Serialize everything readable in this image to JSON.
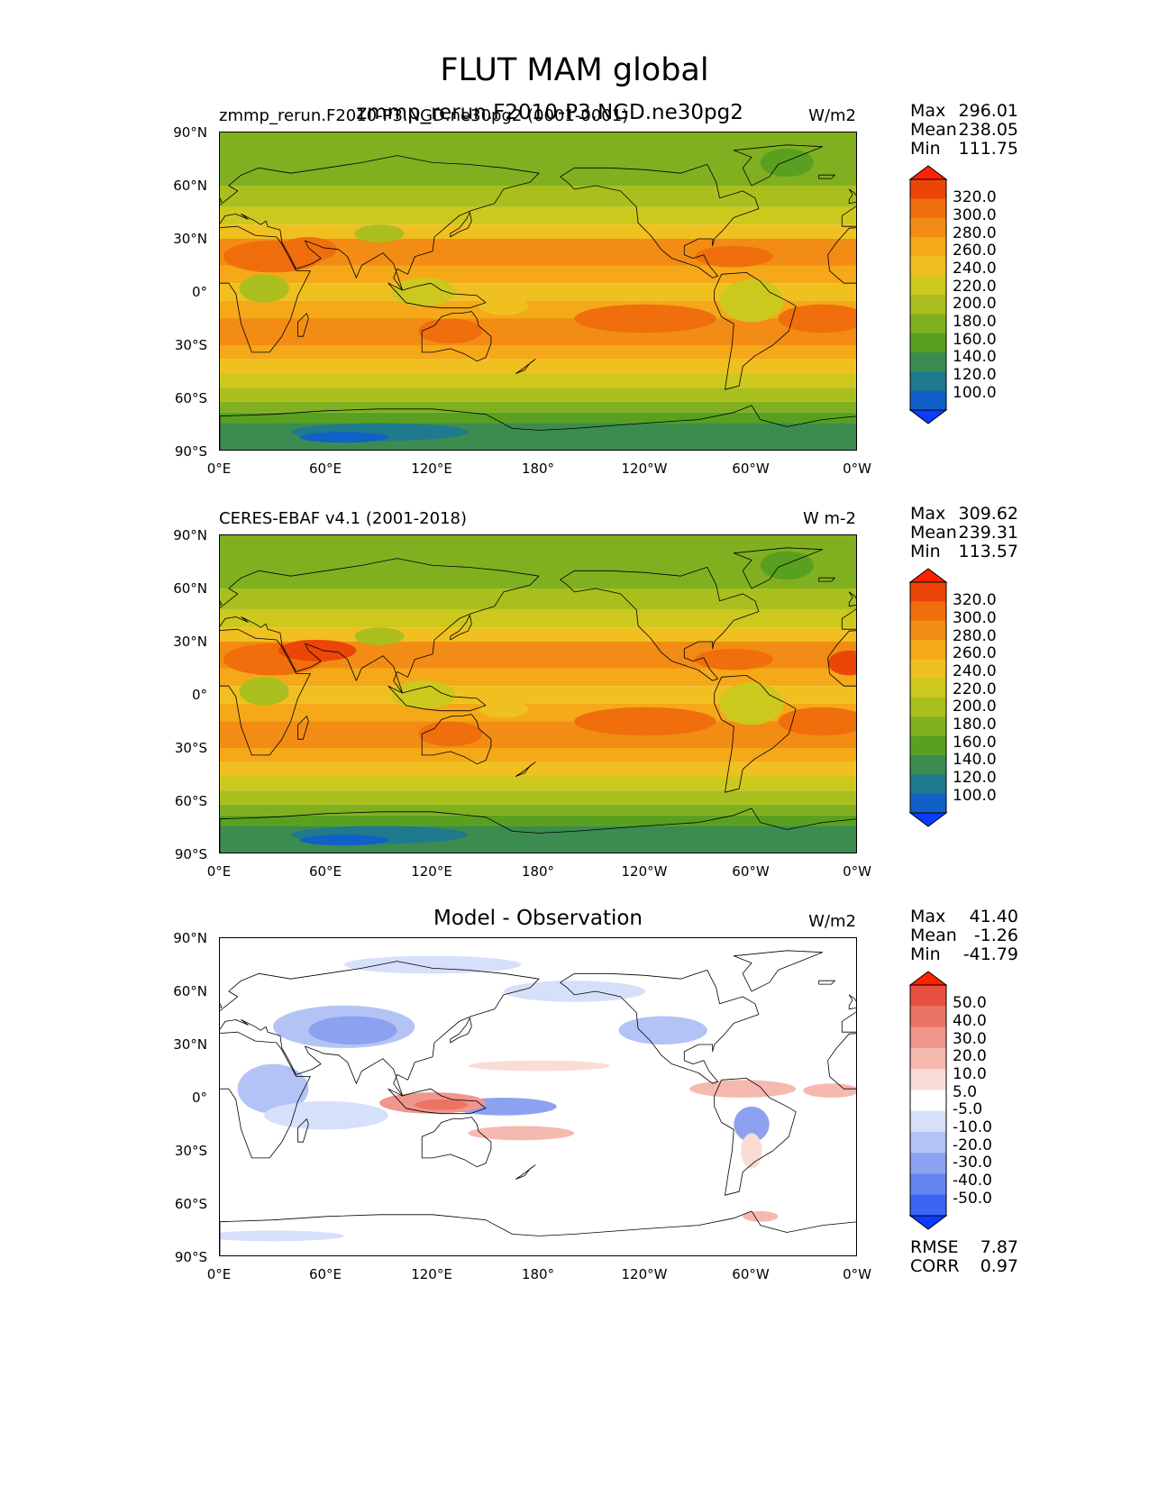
{
  "figure": {
    "title": "FLUT MAM global",
    "overlap_title": "zmmp_rerun.F2010-P3.NGD.ne30pg2"
  },
  "ticks": {
    "lat": [
      "90°N",
      "60°N",
      "30°N",
      "0°",
      "30°S",
      "60°S",
      "90°S"
    ],
    "lon": [
      "0°E",
      "60°E",
      "120°E",
      "180°",
      "120°W",
      "60°W",
      "0°W"
    ]
  },
  "colors": {
    "abs_scale": [
      "#0a3cff",
      "#1060c8",
      "#1e7a8c",
      "#3c8c50",
      "#5aa020",
      "#80b020",
      "#aabf1e",
      "#cdc81e",
      "#f0c020",
      "#f5a818",
      "#f28c14",
      "#f06e0c",
      "#eb4608",
      "#ff2200"
    ],
    "diff_scale": [
      "#0a3cff",
      "#3c64f5",
      "#6482f0",
      "#8ca2f0",
      "#b4c3f5",
      "#d7e0fa",
      "#ffffff",
      "#fadcd7",
      "#f5b9b0",
      "#f0968c",
      "#eb7364",
      "#e65041",
      "#ff2200"
    ]
  },
  "panels": [
    {
      "left_title": "zmmp_rerun.F2010-P3.NGD.ne30pg2 (0001-0001)",
      "center_title": "",
      "units": "W/m2",
      "stats": [
        {
          "label": "Max",
          "value": "296.01"
        },
        {
          "label": "Mean",
          "value": "238.05"
        },
        {
          "label": "Min",
          "value": "111.75"
        }
      ],
      "levels": [
        "320.0",
        "300.0",
        "280.0",
        "260.0",
        "240.0",
        "220.0",
        "200.0",
        "180.0",
        "160.0",
        "140.0",
        "120.0",
        "100.0"
      ],
      "extra_stats": []
    },
    {
      "left_title": "CERES-EBAF v4.1 (2001-2018)",
      "center_title": "",
      "units": "W m-2",
      "stats": [
        {
          "label": "Max",
          "value": "309.62"
        },
        {
          "label": "Mean",
          "value": "239.31"
        },
        {
          "label": "Min",
          "value": "113.57"
        }
      ],
      "levels": [
        "320.0",
        "300.0",
        "280.0",
        "260.0",
        "240.0",
        "220.0",
        "200.0",
        "180.0",
        "160.0",
        "140.0",
        "120.0",
        "100.0"
      ],
      "extra_stats": []
    },
    {
      "left_title": "",
      "center_title": "Model - Observation",
      "units": "W/m2",
      "stats": [
        {
          "label": "Max",
          "value": "41.40"
        },
        {
          "label": "Mean",
          "value": "-1.26"
        },
        {
          "label": "Min",
          "value": "-41.79"
        }
      ],
      "levels": [
        "50.0",
        "40.0",
        "30.0",
        "20.0",
        "10.0",
        "5.0",
        "-5.0",
        "-10.0",
        "-20.0",
        "-30.0",
        "-40.0",
        "-50.0"
      ],
      "extra_stats": [
        {
          "label": "RMSE",
          "value": "7.87"
        },
        {
          "label": "CORR",
          "value": "0.97"
        }
      ]
    }
  ],
  "chart_data": [
    {
      "type": "heatmap",
      "title": "zmmp_rerun.F2010-P3.NGD.ne30pg2 (0001-0001)",
      "units": "W/m2",
      "variable": "FLUT",
      "season": "MAM",
      "stats": {
        "max": 296.01,
        "mean": 238.05,
        "min": 111.75
      },
      "contour_levels": [
        100,
        120,
        140,
        160,
        180,
        200,
        220,
        240,
        260,
        280,
        300,
        320
      ],
      "lat_range": [
        -90,
        90
      ],
      "lon_range": [
        0,
        360
      ]
    },
    {
      "type": "heatmap",
      "title": "CERES-EBAF v4.1 (2001-2018)",
      "units": "W m-2",
      "variable": "FLUT",
      "season": "MAM",
      "stats": {
        "max": 309.62,
        "mean": 239.31,
        "min": 113.57
      },
      "contour_levels": [
        100,
        120,
        140,
        160,
        180,
        200,
        220,
        240,
        260,
        280,
        300,
        320
      ],
      "lat_range": [
        -90,
        90
      ],
      "lon_range": [
        0,
        360
      ]
    },
    {
      "type": "heatmap",
      "title": "Model - Observation",
      "units": "W/m2",
      "stats": {
        "max": 41.4,
        "mean": -1.26,
        "min": -41.79,
        "rmse": 7.87,
        "corr": 0.97
      },
      "contour_levels": [
        -50,
        -40,
        -30,
        -20,
        -10,
        -5,
        5,
        10,
        20,
        30,
        40,
        50
      ],
      "lat_range": [
        -90,
        90
      ],
      "lon_range": [
        0,
        360
      ]
    }
  ]
}
